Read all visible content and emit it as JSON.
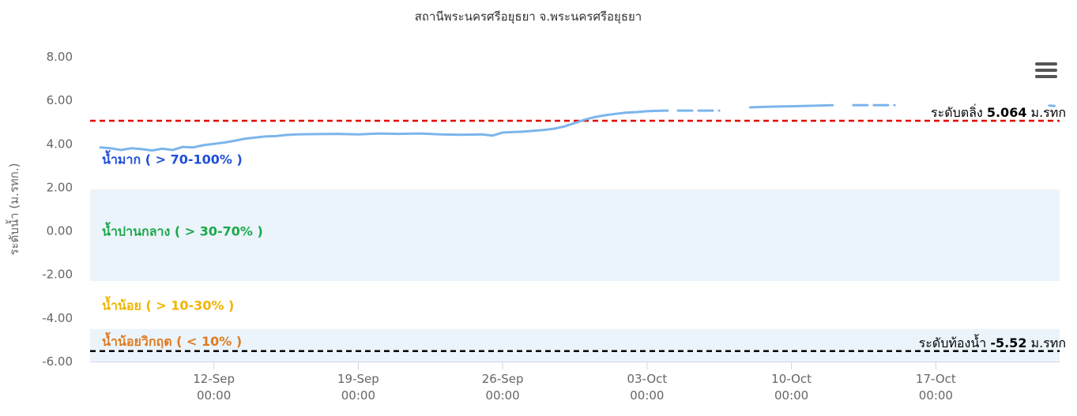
{
  "chart_data": {
    "type": "line",
    "title": "สถานีพระนครศรีอยุธยา จ.พระนครศรีอยุธยา",
    "ylabel": "ระดับน้ำ (ม.รทก.)",
    "xlabel": "",
    "ylim": [
      -6,
      8
    ],
    "yticks": [
      8,
      6,
      4,
      2,
      0,
      -2,
      -4,
      -6
    ],
    "ytick_labels": [
      "8.00",
      "6.00",
      "4.00",
      "2.00",
      "0.00",
      "-2.00",
      "-4.00",
      "-6.00"
    ],
    "xlim": [
      "2024-09-06",
      "2024-10-23"
    ],
    "xticks": [
      {
        "date": "2024-09-12",
        "line1": "12-Sep",
        "line2": "00:00"
      },
      {
        "date": "2024-09-19",
        "line1": "19-Sep",
        "line2": "00:00"
      },
      {
        "date": "2024-09-26",
        "line1": "26-Sep",
        "line2": "00:00"
      },
      {
        "date": "2024-10-03",
        "line1": "03-Oct",
        "line2": "00:00"
      },
      {
        "date": "2024-10-10",
        "line1": "10-Oct",
        "line2": "00:00"
      },
      {
        "date": "2024-10-17",
        "line1": "17-Oct",
        "line2": "00:00"
      }
    ],
    "grid": false,
    "legend": "none",
    "series": [
      {
        "color": "#7cb5ec",
        "segments": [
          {
            "style": "solid",
            "points": [
              [
                "2024-09-06T12:00",
                3.84
              ],
              [
                "2024-09-07T00:00",
                3.8
              ],
              [
                "2024-09-07T12:00",
                3.72
              ],
              [
                "2024-09-08T00:00",
                3.8
              ],
              [
                "2024-09-08T12:00",
                3.76
              ],
              [
                "2024-09-09T00:00",
                3.7
              ],
              [
                "2024-09-09T12:00",
                3.78
              ],
              [
                "2024-09-10T00:00",
                3.72
              ],
              [
                "2024-09-10T12:00",
                3.86
              ],
              [
                "2024-09-11T00:00",
                3.84
              ],
              [
                "2024-09-11T12:00",
                3.94
              ],
              [
                "2024-09-12T00:00",
                4.0
              ],
              [
                "2024-09-12T12:00",
                4.06
              ],
              [
                "2024-09-13T00:00",
                4.14
              ],
              [
                "2024-09-13T12:00",
                4.24
              ],
              [
                "2024-09-14T00:00",
                4.29
              ],
              [
                "2024-09-14T12:00",
                4.34
              ],
              [
                "2024-09-15T00:00",
                4.36
              ],
              [
                "2024-09-15T12:00",
                4.41
              ],
              [
                "2024-09-16T00:00",
                4.44
              ],
              [
                "2024-09-17T00:00",
                4.45
              ],
              [
                "2024-09-18T00:00",
                4.46
              ],
              [
                "2024-09-19T00:00",
                4.44
              ],
              [
                "2024-09-20T00:00",
                4.48
              ],
              [
                "2024-09-21T00:00",
                4.46
              ],
              [
                "2024-09-22T00:00",
                4.48
              ],
              [
                "2024-09-23T00:00",
                4.44
              ],
              [
                "2024-09-24T00:00",
                4.42
              ],
              [
                "2024-09-25T00:00",
                4.44
              ],
              [
                "2024-09-25T12:00",
                4.38
              ],
              [
                "2024-09-26T00:00",
                4.52
              ],
              [
                "2024-09-27T00:00",
                4.56
              ],
              [
                "2024-09-28T00:00",
                4.64
              ],
              [
                "2024-09-28T12:00",
                4.7
              ],
              [
                "2024-09-29T00:00",
                4.8
              ],
              [
                "2024-09-29T12:00",
                4.96
              ],
              [
                "2024-09-30T00:00",
                5.12
              ],
              [
                "2024-09-30T12:00",
                5.24
              ],
              [
                "2024-10-01T00:00",
                5.32
              ],
              [
                "2024-10-01T12:00",
                5.38
              ],
              [
                "2024-10-02T00:00",
                5.44
              ],
              [
                "2024-10-02T12:00",
                5.46
              ],
              [
                "2024-10-03T00:00",
                5.5
              ],
              [
                "2024-10-03T12:00",
                5.52
              ],
              [
                "2024-10-04T00:00",
                5.53
              ]
            ]
          },
          {
            "style": "dashed",
            "points": [
              [
                "2024-10-04T12:00",
                5.53
              ],
              [
                "2024-10-06T12:00",
                5.53
              ]
            ]
          },
          {
            "style": "solid",
            "points": [
              [
                "2024-10-08T00:00",
                5.68
              ],
              [
                "2024-10-09T00:00",
                5.71
              ],
              [
                "2024-10-10T00:00",
                5.73
              ],
              [
                "2024-10-11T00:00",
                5.75
              ],
              [
                "2024-10-12T00:00",
                5.78
              ]
            ]
          },
          {
            "style": "dashed",
            "points": [
              [
                "2024-10-13T00:00",
                5.78
              ],
              [
                "2024-10-15T00:00",
                5.78
              ]
            ]
          },
          {
            "style": "solid",
            "points": [
              [
                "2024-10-22T12:00",
                5.76
              ],
              [
                "2024-10-22T18:00",
                5.74
              ]
            ]
          }
        ]
      }
    ],
    "bands": [
      {
        "from": -2.3,
        "to": 1.9,
        "color": "#ebf4fb",
        "label": "น้ำปานกลาง ( > 30-70% )",
        "label_y": 0.0,
        "label_color": "#1ba84a"
      },
      {
        "from": -6.0,
        "to": -4.5,
        "color": "#ebf4fb",
        "label": "น้ำน้อยวิกฤต ( < 10% )",
        "label_y": -5.05,
        "label_color": "#e07b1f"
      }
    ],
    "zone_labels": [
      {
        "label": "น้ำมาก ( > 70-100% )",
        "y": 3.3,
        "color": "#1f4fd8"
      },
      {
        "label": "น้ำน้อย ( > 10-30% )",
        "y": -3.4,
        "color": "#f0b400"
      }
    ],
    "plot_lines": [
      {
        "value": 5.064,
        "color": "#e60000",
        "style": "dashed",
        "label_prefix": "ระดับตลิ่ง",
        "label_value": "5.064",
        "label_unit": "ม.รทก"
      },
      {
        "value": -5.52,
        "color": "#000000",
        "style": "dashed",
        "label_prefix": "ระดับท้องน้ำ",
        "label_value": "-5.52",
        "label_unit": "ม.รทก"
      }
    ]
  }
}
